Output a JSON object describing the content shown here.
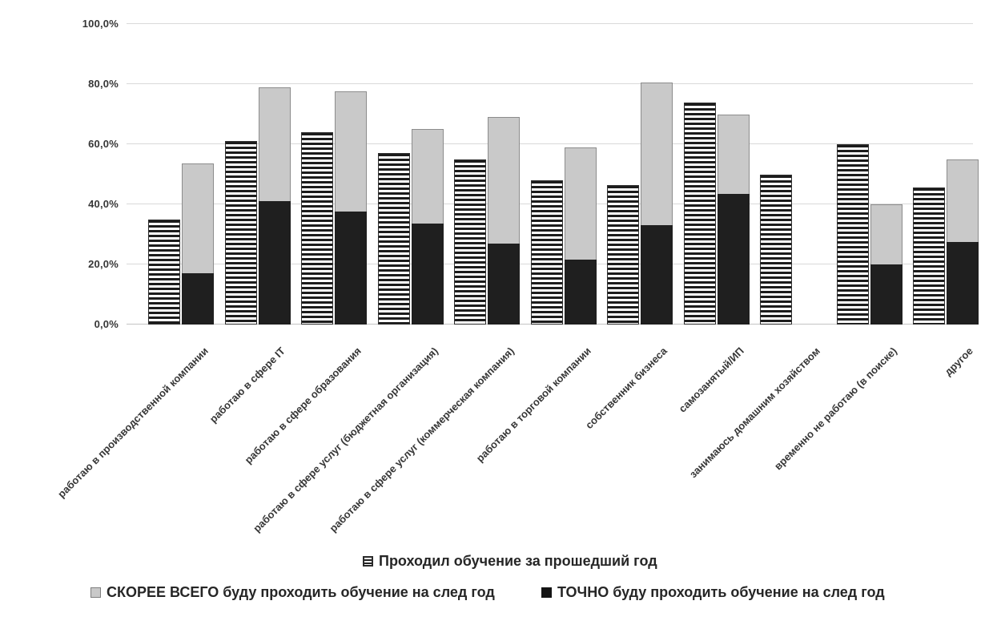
{
  "chart_data": {
    "type": "bar",
    "subtype": "grouped, with series 2 stacked on top of series 3",
    "title": "",
    "unit": "%",
    "categories": [
      "работаю  в производственной компании",
      "работаю  в сфере IT",
      "работаю в сфере образования",
      "работаю  в сфере услуг (бюджетная организация)",
      "работаю в сфере услуг (коммерческая компания)",
      "работаю в торговой компании",
      "собственник бизнеса",
      "самозанятый/ИП",
      "занимаюсь домашним хозяйством",
      "временно не работаю (в поиске)",
      "другое"
    ],
    "series": [
      {
        "name": "Проходил обучение за прошедший год",
        "pattern": "horizontal-stripes",
        "fill": "#ffffff",
        "stripe_color": "#1c1c1c",
        "values": [
          35,
          61,
          64,
          57,
          55,
          48,
          46.5,
          74,
          50,
          60,
          45.5
        ]
      },
      {
        "name": "СКОРЕЕ ВСЕГО буду проходить обучение на след год",
        "fill": "#c9c9c9",
        "stacked_on": "ТОЧНО буду проходить обучение на след год",
        "values": [
          36.5,
          38,
          40,
          31.5,
          42,
          37.5,
          47.5,
          26.5,
          0,
          20,
          27.5
        ],
        "stack_top_totals": [
          53.5,
          79,
          77.5,
          65,
          69,
          59,
          80.5,
          70,
          0,
          40,
          55
        ]
      },
      {
        "name": "ТОЧНО буду проходить обучение на след год",
        "fill": "#1f1f1f",
        "values": [
          17,
          41,
          37.5,
          33.5,
          27,
          21.5,
          33,
          43.5,
          0,
          20,
          27.5
        ]
      }
    ],
    "y_ticks": [
      {
        "value": 100,
        "label": "100,0%"
      },
      {
        "value": 80,
        "label": "80,0%"
      },
      {
        "value": 60,
        "label": "60,0%"
      },
      {
        "value": 40,
        "label": "40,0%"
      },
      {
        "value": 20,
        "label": "20,0%"
      },
      {
        "value": 0,
        "label": "0,0%"
      }
    ],
    "ylim": [
      0,
      100
    ],
    "grid": true,
    "legend_position": "bottom"
  },
  "colors": {
    "background": "#ffffff",
    "gridline": "#d9d9d9",
    "axis_text": "#363636",
    "legend_text": "#262626",
    "gray_fill": "#c9c9c9",
    "gray_border": "#8c8c8c",
    "black_fill": "#1f1f1f",
    "stripe_dark": "#1c1c1c"
  }
}
